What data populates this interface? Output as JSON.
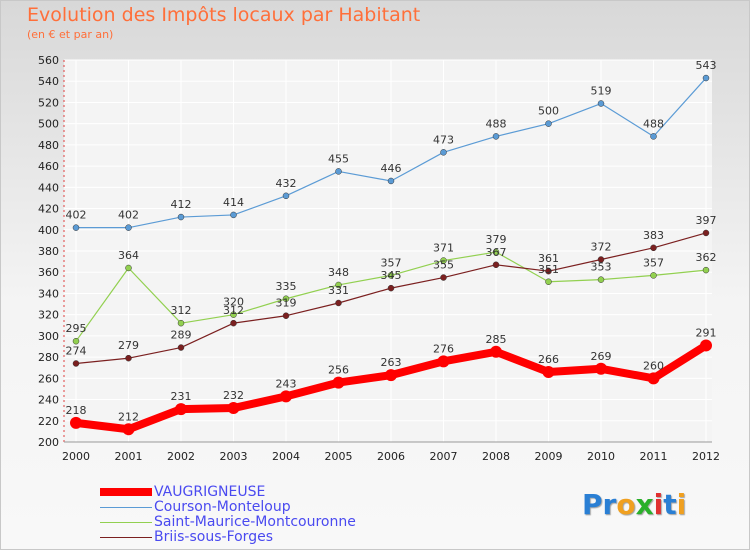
{
  "title": "Evolution des Impôts locaux par Habitant",
  "subtitle": "(en € et par an)",
  "logo": {
    "text": "Proxiti",
    "letters": [
      "P",
      "r",
      "o",
      "x",
      "i",
      "t",
      "i"
    ],
    "colors": [
      "#2a7fd4",
      "#2a7fd4",
      "#f0a020",
      "#2ab02a",
      "#e03030",
      "#2a7fd4",
      "#f0a020"
    ]
  },
  "chart_data": {
    "type": "line",
    "x": [
      "2000",
      "2001",
      "2002",
      "2003",
      "2004",
      "2005",
      "2006",
      "2007",
      "2008",
      "2009",
      "2010",
      "2011",
      "2012"
    ],
    "ylim": [
      200,
      560
    ],
    "yticks": [
      "200",
      "220",
      "240",
      "260",
      "280",
      "300",
      "320",
      "340",
      "360",
      "380",
      "400",
      "420",
      "440",
      "460",
      "480",
      "500",
      "520",
      "540",
      "560"
    ],
    "grid": true,
    "legend_position": "bottom-left",
    "series": [
      {
        "name": "VAUGRIGNEUSE",
        "color": "#ff0000",
        "width": 8,
        "values": [
          218,
          212,
          231,
          232,
          243,
          256,
          263,
          276,
          285,
          266,
          269,
          260,
          291
        ],
        "labels": [
          "218",
          "212",
          "231",
          "232",
          "243",
          "256",
          "263",
          "276",
          "285",
          "266",
          "269",
          "260",
          "291"
        ]
      },
      {
        "name": "Courson-Monteloup",
        "color": "#5b9bd5",
        "width": 1.2,
        "values": [
          402,
          402,
          412,
          414,
          432,
          455,
          446,
          473,
          488,
          500,
          519,
          488,
          543
        ],
        "labels": [
          "402",
          "402",
          "412",
          "414",
          "432",
          "455",
          "446",
          "473",
          "488",
          "500",
          "519",
          "488",
          "543"
        ]
      },
      {
        "name": "Saint-Maurice-Montcouronne",
        "color": "#92d050",
        "width": 1.2,
        "values": [
          295,
          364,
          312,
          320,
          335,
          348,
          357,
          371,
          379,
          351,
          353,
          357,
          362
        ],
        "labels": [
          "295",
          "364",
          "312",
          "320",
          "335",
          "348",
          "357",
          "371",
          "379",
          "351",
          "353",
          "357",
          "362"
        ]
      },
      {
        "name": "Briis-sous-Forges",
        "color": "#7b2020",
        "width": 1.2,
        "values": [
          274,
          279,
          289,
          312,
          319,
          331,
          345,
          355,
          367,
          361,
          372,
          383,
          397
        ],
        "labels": [
          "274",
          "279",
          "289",
          "312",
          "319",
          "331",
          "345",
          "355",
          "367",
          "361",
          "372",
          "383",
          "397"
        ]
      }
    ]
  }
}
